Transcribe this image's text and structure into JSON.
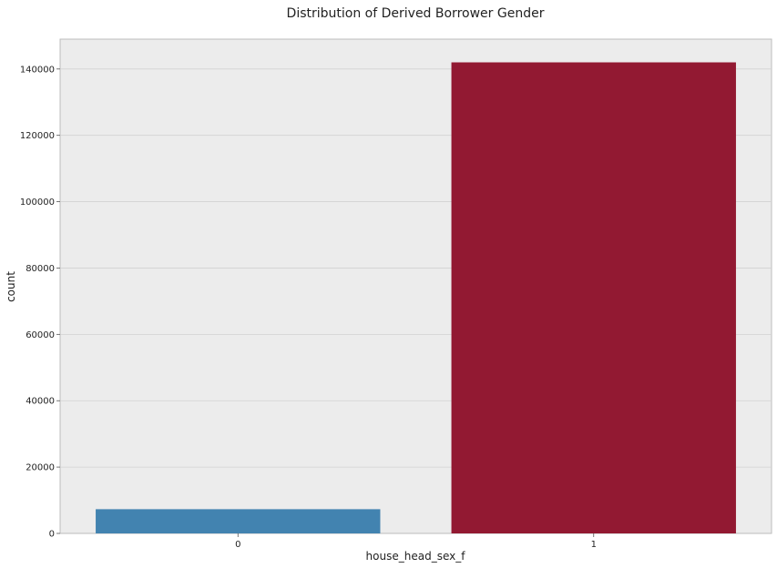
{
  "chart_data": {
    "type": "bar",
    "title": "Distribution of Derived Borrower Gender",
    "xlabel": "house_head_sex_f",
    "ylabel": "count",
    "categories": [
      "0",
      "1"
    ],
    "values": [
      7300,
      142000
    ],
    "ylim": [
      0,
      149000
    ],
    "yticks": [
      0,
      20000,
      40000,
      60000,
      80000,
      100000,
      120000,
      140000
    ],
    "ytick_labels": [
      "0",
      "20000",
      "40000",
      "60000",
      "80000",
      "100000",
      "120000",
      "140000"
    ],
    "colors": [
      "#4283b0",
      "#921932"
    ],
    "grid": true,
    "background": "#ececec",
    "legend": "none"
  }
}
